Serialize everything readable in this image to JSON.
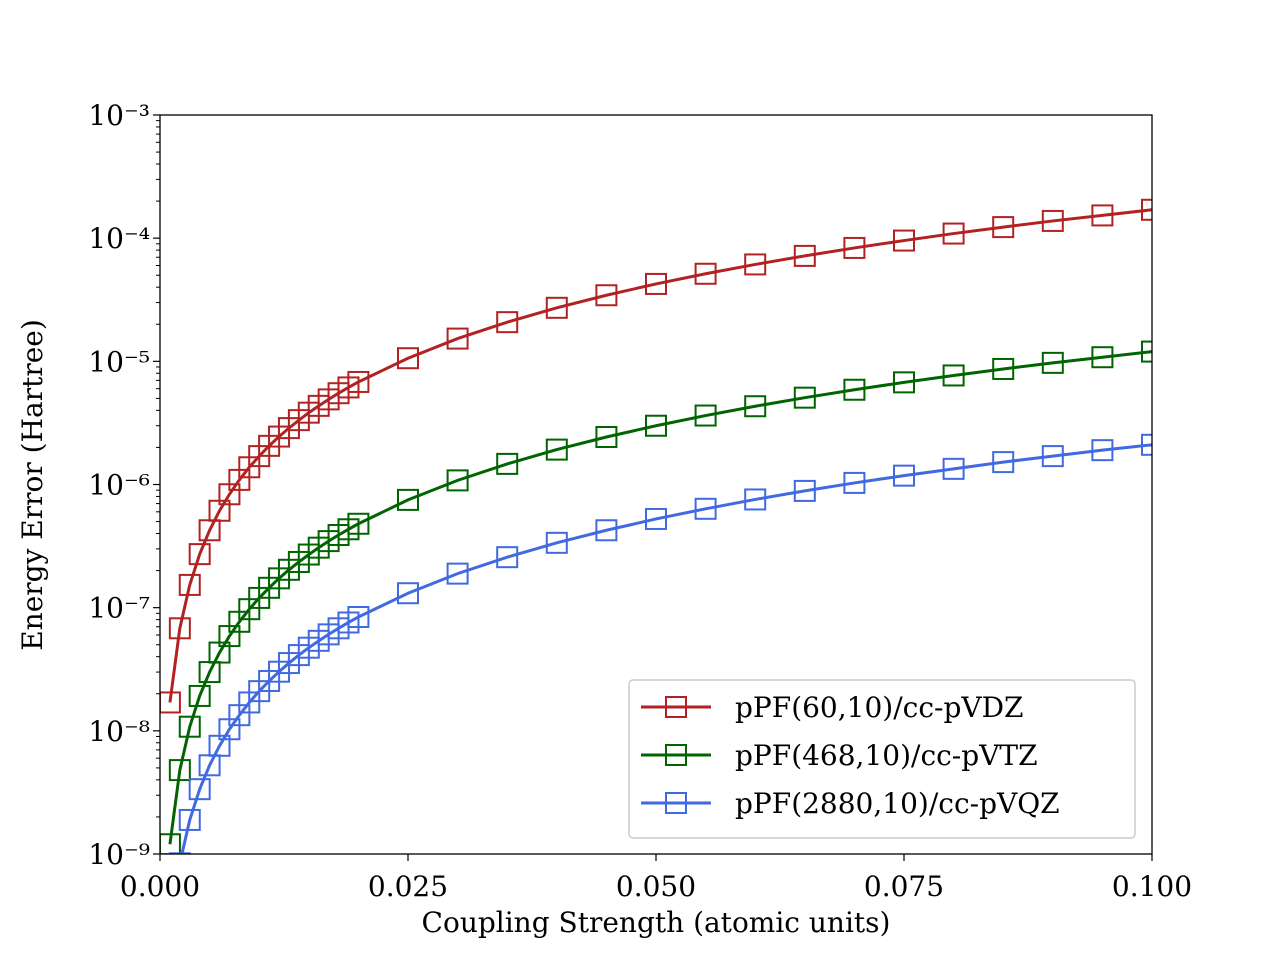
{
  "chart_data": {
    "type": "line",
    "x_label": "Coupling Strength (atomic units)",
    "y_label": "Energy Error (Hartree)",
    "x": [
      0.001,
      0.002,
      0.003,
      0.004,
      0.005,
      0.006,
      0.007,
      0.008,
      0.009,
      0.01,
      0.011,
      0.012,
      0.013,
      0.014,
      0.015,
      0.016,
      0.017,
      0.018,
      0.019,
      0.02,
      0.025,
      0.03,
      0.035,
      0.04,
      0.045,
      0.05,
      0.055,
      0.06,
      0.065,
      0.07,
      0.075,
      0.08,
      0.085,
      0.09,
      0.095,
      0.1
    ],
    "series": [
      {
        "name": "pPF(60,10)/cc-pVDZ",
        "color": "#b22222",
        "marker": "square",
        "values": [
          1.7e-08,
          6.8e-08,
          1.53e-07,
          2.72e-07,
          4.25e-07,
          6.12e-07,
          8.33e-07,
          1.09e-06,
          1.38e-06,
          1.7e-06,
          2.06e-06,
          2.45e-06,
          2.87e-06,
          3.33e-06,
          3.83e-06,
          4.35e-06,
          4.91e-06,
          5.51e-06,
          6.14e-06,
          6.8e-06,
          1.06e-05,
          1.53e-05,
          2.08e-05,
          2.72e-05,
          3.44e-05,
          4.25e-05,
          5.14e-05,
          6.12e-05,
          7.18e-05,
          8.33e-05,
          9.56e-05,
          0.000109,
          0.000123,
          0.000138,
          0.000153,
          0.00017
        ]
      },
      {
        "name": "pPF(468,10)/cc-pVTZ",
        "color": "#006400",
        "marker": "square",
        "values": [
          1.2e-09,
          4.8e-09,
          1.08e-08,
          1.92e-08,
          3e-08,
          4.32e-08,
          5.88e-08,
          7.68e-08,
          9.72e-08,
          1.2e-07,
          1.45e-07,
          1.73e-07,
          2.03e-07,
          2.35e-07,
          2.7e-07,
          3.07e-07,
          3.47e-07,
          3.89e-07,
          4.33e-07,
          4.8e-07,
          7.5e-07,
          1.08e-06,
          1.47e-06,
          1.92e-06,
          2.43e-06,
          3e-06,
          3.63e-06,
          4.32e-06,
          5.07e-06,
          5.88e-06,
          6.75e-06,
          7.68e-06,
          8.67e-06,
          9.72e-06,
          1.08e-05,
          1.2e-05
        ]
      },
      {
        "name": "pPF(2880,10)/cc-pVQZ",
        "color": "#4169e1",
        "marker": "square",
        "values": [
          2.1e-10,
          8.4e-10,
          1.89e-09,
          3.36e-09,
          5.25e-09,
          7.56e-09,
          1.03e-08,
          1.34e-08,
          1.7e-08,
          2.1e-08,
          2.54e-08,
          3.02e-08,
          3.55e-08,
          4.12e-08,
          4.73e-08,
          5.38e-08,
          6.07e-08,
          6.8e-08,
          7.58e-08,
          8.4e-08,
          1.31e-07,
          1.89e-07,
          2.57e-07,
          3.36e-07,
          4.25e-07,
          5.25e-07,
          6.35e-07,
          7.56e-07,
          8.87e-07,
          1.03e-06,
          1.18e-06,
          1.34e-06,
          1.52e-06,
          1.7e-06,
          1.9e-06,
          2.1e-06
        ]
      }
    ],
    "xlim": [
      0,
      0.1
    ],
    "xticks": [
      {
        "value": 0,
        "label": "0.000"
      },
      {
        "value": 0.025,
        "label": "0.025"
      },
      {
        "value": 0.05,
        "label": "0.050"
      },
      {
        "value": 0.075,
        "label": "0.075"
      },
      {
        "value": 0.1,
        "label": "0.100"
      }
    ],
    "ylim": [
      1e-09,
      0.001
    ],
    "yscale": "log",
    "minor_ticks": true,
    "yticks": [
      {
        "value": 1e-09,
        "label": "10⁻⁹"
      },
      {
        "value": 1e-08,
        "label": "10⁻⁸"
      },
      {
        "value": 1e-07,
        "label": "10⁻⁷"
      },
      {
        "value": 1e-06,
        "label": "10⁻⁶"
      },
      {
        "value": 1e-05,
        "label": "10⁻⁵"
      },
      {
        "value": 0.0001,
        "label": "10⁻⁴"
      },
      {
        "value": 0.001,
        "label": "10⁻³"
      }
    ],
    "grid": false,
    "legend": "lower right"
  }
}
